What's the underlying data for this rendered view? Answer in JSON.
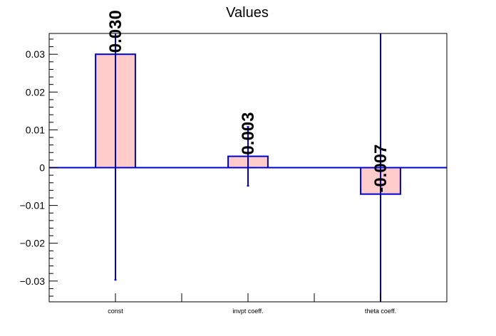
{
  "chart_data": {
    "type": "bar",
    "title": "Values",
    "xlabel": "",
    "ylabel": "",
    "categories": [
      "const",
      "invpt coeff.",
      "theta coeff."
    ],
    "values": [
      0.03,
      0.003,
      -0.007
    ],
    "value_labels": [
      "0.030",
      "0.003",
      "-0.007"
    ],
    "errors": [
      0.0597,
      0.0078,
      0.07
    ],
    "ylim": [
      -0.0355,
      0.0355
    ],
    "yticks": [
      -0.03,
      -0.02,
      -0.01,
      0,
      0.01,
      0.02,
      0.03
    ],
    "ytick_labels": [
      "−0.03",
      "−0.02",
      "−0.01",
      "0",
      "0.01",
      "0.02",
      "0.03"
    ],
    "grid": false,
    "colors": {
      "bar_fill": "#ffcccc",
      "bar_edge": "#0000cc",
      "error_bar": "#0000cc",
      "zero_line": "#0000cc"
    }
  }
}
